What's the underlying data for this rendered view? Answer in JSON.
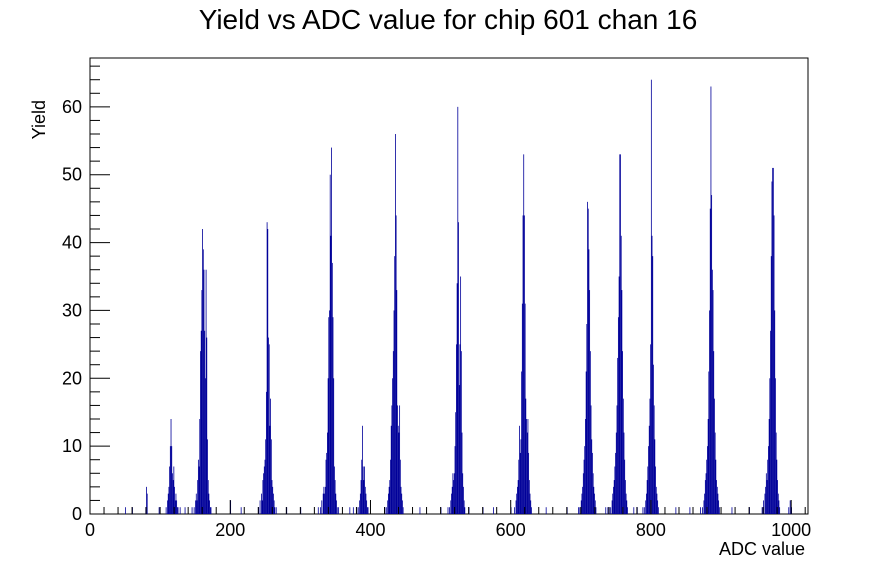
{
  "chart_data": {
    "type": "bar",
    "title": "Yield vs ADC value for chip 601 chan 16",
    "xlabel": "ADC value",
    "ylabel": "Yield",
    "xlim": [
      0,
      1024
    ],
    "ylim": [
      0,
      67.2
    ],
    "x_ticks": [
      0,
      200,
      400,
      600,
      800,
      1000
    ],
    "y_ticks": [
      0,
      10,
      20,
      30,
      40,
      50,
      60
    ],
    "grid": false,
    "legend": "none",
    "line_color": "#000099",
    "bin_width": 1,
    "points": [
      [
        50,
        1
      ],
      [
        60,
        1
      ],
      [
        79,
        1
      ],
      [
        80,
        4
      ],
      [
        81,
        3
      ],
      [
        98,
        1
      ],
      [
        108,
        1
      ],
      [
        110,
        2
      ],
      [
        111,
        3
      ],
      [
        112,
        4
      ],
      [
        113,
        7
      ],
      [
        114,
        10
      ],
      [
        115,
        14
      ],
      [
        116,
        10
      ],
      [
        117,
        6
      ],
      [
        118,
        5
      ],
      [
        119,
        7
      ],
      [
        120,
        4
      ],
      [
        121,
        2
      ],
      [
        122,
        3
      ],
      [
        123,
        2
      ],
      [
        124,
        1
      ],
      [
        125,
        1
      ],
      [
        128,
        1
      ],
      [
        135,
        1
      ],
      [
        145,
        1
      ],
      [
        148,
        1
      ],
      [
        150,
        2
      ],
      [
        151,
        3
      ],
      [
        152,
        2
      ],
      [
        153,
        5
      ],
      [
        154,
        8
      ],
      [
        155,
        7
      ],
      [
        156,
        14
      ],
      [
        157,
        24
      ],
      [
        158,
        27
      ],
      [
        159,
        33
      ],
      [
        160,
        42
      ],
      [
        161,
        39
      ],
      [
        162,
        36
      ],
      [
        163,
        27
      ],
      [
        164,
        20
      ],
      [
        165,
        36
      ],
      [
        166,
        26
      ],
      [
        167,
        11
      ],
      [
        168,
        5
      ],
      [
        169,
        3
      ],
      [
        170,
        2
      ],
      [
        171,
        1
      ],
      [
        172,
        1
      ],
      [
        200,
        2
      ],
      [
        215,
        1
      ],
      [
        240,
        1
      ],
      [
        242,
        2
      ],
      [
        244,
        3
      ],
      [
        245,
        2
      ],
      [
        246,
        5
      ],
      [
        247,
        6
      ],
      [
        248,
        7
      ],
      [
        249,
        8
      ],
      [
        250,
        11
      ],
      [
        251,
        18
      ],
      [
        252,
        43
      ],
      [
        253,
        42
      ],
      [
        254,
        26
      ],
      [
        255,
        25
      ],
      [
        256,
        13
      ],
      [
        257,
        17
      ],
      [
        258,
        11
      ],
      [
        259,
        5
      ],
      [
        260,
        4
      ],
      [
        261,
        3
      ],
      [
        262,
        2
      ],
      [
        263,
        1
      ],
      [
        265,
        1
      ],
      [
        280,
        1
      ],
      [
        300,
        1
      ],
      [
        325,
        1
      ],
      [
        328,
        1
      ],
      [
        330,
        2
      ],
      [
        332,
        3
      ],
      [
        333,
        4
      ],
      [
        334,
        3
      ],
      [
        335,
        4
      ],
      [
        336,
        8
      ],
      [
        337,
        9
      ],
      [
        338,
        12
      ],
      [
        339,
        20
      ],
      [
        340,
        29
      ],
      [
        341,
        30
      ],
      [
        342,
        50
      ],
      [
        343,
        41
      ],
      [
        344,
        54
      ],
      [
        345,
        37
      ],
      [
        346,
        29
      ],
      [
        347,
        20
      ],
      [
        348,
        7
      ],
      [
        349,
        5
      ],
      [
        350,
        3
      ],
      [
        351,
        2
      ],
      [
        352,
        1
      ],
      [
        354,
        1
      ],
      [
        370,
        1
      ],
      [
        375,
        1
      ],
      [
        380,
        1
      ],
      [
        382,
        1
      ],
      [
        384,
        2
      ],
      [
        385,
        3
      ],
      [
        386,
        5
      ],
      [
        387,
        8
      ],
      [
        388,
        13
      ],
      [
        389,
        7
      ],
      [
        390,
        5
      ],
      [
        391,
        7
      ],
      [
        392,
        4
      ],
      [
        393,
        3
      ],
      [
        394,
        2
      ],
      [
        395,
        1
      ],
      [
        396,
        1
      ],
      [
        420,
        1
      ],
      [
        422,
        1
      ],
      [
        424,
        2
      ],
      [
        425,
        3
      ],
      [
        426,
        4
      ],
      [
        427,
        5
      ],
      [
        428,
        8
      ],
      [
        429,
        13
      ],
      [
        430,
        16
      ],
      [
        431,
        20
      ],
      [
        432,
        24
      ],
      [
        433,
        30
      ],
      [
        434,
        38
      ],
      [
        435,
        56
      ],
      [
        436,
        44
      ],
      [
        437,
        33
      ],
      [
        438,
        16
      ],
      [
        439,
        13
      ],
      [
        440,
        12
      ],
      [
        441,
        16
      ],
      [
        442,
        8
      ],
      [
        443,
        4
      ],
      [
        444,
        3
      ],
      [
        445,
        2
      ],
      [
        446,
        1
      ],
      [
        470,
        1
      ],
      [
        500,
        1
      ],
      [
        510,
        1
      ],
      [
        512,
        1
      ],
      [
        514,
        2
      ],
      [
        515,
        3
      ],
      [
        516,
        4
      ],
      [
        517,
        6
      ],
      [
        518,
        5
      ],
      [
        519,
        6
      ],
      [
        520,
        10
      ],
      [
        521,
        15
      ],
      [
        522,
        25
      ],
      [
        523,
        34
      ],
      [
        524,
        60
      ],
      [
        525,
        43
      ],
      [
        526,
        19
      ],
      [
        527,
        25
      ],
      [
        528,
        35
      ],
      [
        529,
        24
      ],
      [
        530,
        12
      ],
      [
        531,
        6
      ],
      [
        532,
        4
      ],
      [
        533,
        2
      ],
      [
        534,
        1
      ],
      [
        540,
        1
      ],
      [
        560,
        1
      ],
      [
        575,
        1
      ],
      [
        600,
        1
      ],
      [
        605,
        1
      ],
      [
        607,
        2
      ],
      [
        608,
        3
      ],
      [
        609,
        4
      ],
      [
        610,
        5
      ],
      [
        611,
        8
      ],
      [
        612,
        13
      ],
      [
        613,
        9
      ],
      [
        614,
        11
      ],
      [
        615,
        21
      ],
      [
        616,
        31
      ],
      [
        617,
        44
      ],
      [
        618,
        53
      ],
      [
        619,
        44
      ],
      [
        620,
        31
      ],
      [
        621,
        17
      ],
      [
        622,
        14
      ],
      [
        623,
        12
      ],
      [
        624,
        14
      ],
      [
        625,
        9
      ],
      [
        626,
        5
      ],
      [
        627,
        3
      ],
      [
        628,
        2
      ],
      [
        629,
        1
      ],
      [
        650,
        1
      ],
      [
        680,
        1
      ],
      [
        696,
        1
      ],
      [
        698,
        1
      ],
      [
        700,
        2
      ],
      [
        701,
        3
      ],
      [
        702,
        4
      ],
      [
        703,
        6
      ],
      [
        704,
        8
      ],
      [
        705,
        10
      ],
      [
        706,
        14
      ],
      [
        707,
        21
      ],
      [
        708,
        28
      ],
      [
        709,
        46
      ],
      [
        710,
        45
      ],
      [
        711,
        39
      ],
      [
        712,
        33
      ],
      [
        713,
        24
      ],
      [
        714,
        16
      ],
      [
        715,
        11
      ],
      [
        716,
        9
      ],
      [
        717,
        6
      ],
      [
        718,
        4
      ],
      [
        719,
        3
      ],
      [
        720,
        2
      ],
      [
        721,
        1
      ],
      [
        735,
        1
      ],
      [
        738,
        1
      ],
      [
        740,
        1
      ],
      [
        742,
        1
      ],
      [
        744,
        2
      ],
      [
        745,
        3
      ],
      [
        746,
        4
      ],
      [
        747,
        5
      ],
      [
        748,
        7
      ],
      [
        749,
        9
      ],
      [
        750,
        12
      ],
      [
        751,
        16
      ],
      [
        752,
        23
      ],
      [
        753,
        29
      ],
      [
        754,
        35
      ],
      [
        755,
        53
      ],
      [
        756,
        53
      ],
      [
        757,
        41
      ],
      [
        758,
        33
      ],
      [
        759,
        24
      ],
      [
        760,
        17
      ],
      [
        761,
        12
      ],
      [
        762,
        8
      ],
      [
        763,
        5
      ],
      [
        764,
        3
      ],
      [
        765,
        2
      ],
      [
        766,
        1
      ],
      [
        775,
        1
      ],
      [
        780,
        1
      ],
      [
        788,
        1
      ],
      [
        790,
        1
      ],
      [
        792,
        2
      ],
      [
        793,
        3
      ],
      [
        794,
        5
      ],
      [
        795,
        7
      ],
      [
        796,
        10
      ],
      [
        797,
        13
      ],
      [
        798,
        17
      ],
      [
        799,
        25
      ],
      [
        800,
        64
      ],
      [
        801,
        41
      ],
      [
        802,
        38
      ],
      [
        803,
        22
      ],
      [
        804,
        16
      ],
      [
        805,
        11
      ],
      [
        806,
        7
      ],
      [
        807,
        4
      ],
      [
        808,
        3
      ],
      [
        809,
        2
      ],
      [
        810,
        1
      ],
      [
        835,
        1
      ],
      [
        855,
        1
      ],
      [
        870,
        1
      ],
      [
        873,
        1
      ],
      [
        875,
        2
      ],
      [
        876,
        3
      ],
      [
        877,
        5
      ],
      [
        878,
        6
      ],
      [
        879,
        8
      ],
      [
        880,
        10
      ],
      [
        881,
        14
      ],
      [
        882,
        21
      ],
      [
        883,
        30
      ],
      [
        884,
        45
      ],
      [
        885,
        63
      ],
      [
        886,
        47
      ],
      [
        887,
        36
      ],
      [
        888,
        33
      ],
      [
        889,
        24
      ],
      [
        890,
        17
      ],
      [
        891,
        12
      ],
      [
        892,
        8
      ],
      [
        893,
        5
      ],
      [
        894,
        4
      ],
      [
        895,
        3
      ],
      [
        896,
        2
      ],
      [
        897,
        1
      ],
      [
        915,
        1
      ],
      [
        940,
        1
      ],
      [
        958,
        1
      ],
      [
        960,
        2
      ],
      [
        962,
        3
      ],
      [
        963,
        4
      ],
      [
        964,
        6
      ],
      [
        965,
        5
      ],
      [
        966,
        8
      ],
      [
        967,
        10
      ],
      [
        968,
        14
      ],
      [
        969,
        20
      ],
      [
        970,
        27
      ],
      [
        971,
        38
      ],
      [
        972,
        49
      ],
      [
        973,
        51
      ],
      [
        974,
        51
      ],
      [
        975,
        44
      ],
      [
        976,
        30
      ],
      [
        977,
        20
      ],
      [
        978,
        12
      ],
      [
        979,
        8
      ],
      [
        980,
        5
      ],
      [
        981,
        3
      ],
      [
        982,
        2
      ],
      [
        983,
        1
      ],
      [
        996,
        1
      ],
      [
        998,
        2
      ],
      [
        1000,
        1
      ]
    ]
  }
}
